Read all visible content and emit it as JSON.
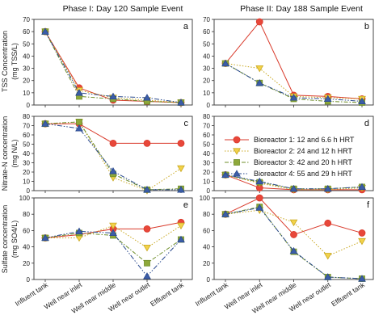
{
  "phase_titles": [
    "Phase I: Day 120 Sample Event",
    "Phase II: Day 188 Sample Event"
  ],
  "row_labels": [
    {
      "line1": "TSS Concentration",
      "line2": "(mg TSS/L)"
    },
    {
      "line1": "Nitrate-N concentration",
      "line2": "(mg N/L)"
    },
    {
      "line1": "Sulfate concentration",
      "line2": "(mg SO4/L)"
    }
  ],
  "categories": [
    "Influent tank",
    "Well near inlet",
    "Well near middle",
    "Well near outlet",
    "Effluent tank"
  ],
  "legend": [
    "Bioreactor 1: 12 and 6.6 h HRT",
    "Bioreactor 2: 24 and 12 h HRT",
    "Bioreactor 3: 42 and 20 h HRT",
    "Bioreactor 4: 55 and 29 h HRT"
  ],
  "colors": [
    "#d93a2b",
    "#c9a820",
    "#6f8e2a",
    "#2a4a8e"
  ],
  "fills": [
    "#e8473a",
    "#f2d24a",
    "#8ea83a",
    "#3c5da8"
  ],
  "chart_data": [
    {
      "type": "line",
      "panel": "a",
      "ylim": [
        0,
        70
      ],
      "yticks": [
        0,
        10,
        20,
        30,
        40,
        50,
        60,
        70
      ],
      "series": [
        {
          "name": "Bioreactor 1: 12 and 6.6 h HRT",
          "values": [
            60,
            14,
            4,
            3,
            2
          ]
        },
        {
          "name": "Bioreactor 2: 24 and 12 h HRT",
          "values": [
            60,
            12,
            6,
            4,
            2
          ]
        },
        {
          "name": "Bioreactor 3: 42 and 20 h HRT",
          "values": [
            60,
            7,
            5,
            3,
            2
          ]
        },
        {
          "name": "Bioreactor 4: 55 and 29 h HRT",
          "values": [
            60,
            10,
            7,
            6,
            2
          ]
        }
      ]
    },
    {
      "type": "line",
      "panel": "b",
      "ylim": [
        0,
        70
      ],
      "yticks": [
        0,
        10,
        20,
        30,
        40,
        50,
        60,
        70
      ],
      "series": [
        {
          "name": "Bioreactor 1: 12 and 6.6 h HRT",
          "values": [
            34,
            68,
            8,
            7,
            5
          ]
        },
        {
          "name": "Bioreactor 2: 24 and 12 h HRT",
          "values": [
            34,
            30,
            7,
            6,
            5
          ]
        },
        {
          "name": "Bioreactor 3: 42 and 20 h HRT",
          "values": [
            34,
            18,
            5,
            3,
            2
          ]
        },
        {
          "name": "Bioreactor 4: 55 and 29 h HRT",
          "values": [
            34,
            18,
            6,
            5,
            3
          ]
        }
      ]
    },
    {
      "type": "line",
      "panel": "c",
      "ylim": [
        0,
        80
      ],
      "yticks": [
        0,
        10,
        20,
        30,
        40,
        50,
        60,
        70,
        80
      ],
      "series": [
        {
          "name": "Bioreactor 1: 12 and 6.6 h HRT",
          "values": [
            72,
            72,
            51,
            51,
            51
          ]
        },
        {
          "name": "Bioreactor 2: 24 and 12 h HRT",
          "values": [
            72,
            74,
            14,
            0,
            24
          ]
        },
        {
          "name": "Bioreactor 3: 42 and 20 h HRT",
          "values": [
            72,
            74,
            18,
            1,
            2
          ]
        },
        {
          "name": "Bioreactor 4: 55 and 29 h HRT",
          "values": [
            72,
            67,
            21,
            1,
            1
          ]
        }
      ]
    },
    {
      "type": "line",
      "panel": "d",
      "ylim": [
        0,
        80
      ],
      "yticks": [
        0,
        10,
        20,
        30,
        40,
        50,
        60,
        70,
        80
      ],
      "series": [
        {
          "name": "Bioreactor 1: 12 and 6.6 h HRT",
          "values": [
            17,
            3,
            1,
            1,
            1
          ]
        },
        {
          "name": "Bioreactor 2: 24 and 12 h HRT",
          "values": [
            17,
            8,
            1,
            1,
            3
          ]
        },
        {
          "name": "Bioreactor 3: 42 and 20 h HRT",
          "values": [
            17,
            9,
            2,
            2,
            4
          ]
        },
        {
          "name": "Bioreactor 4: 55 and 29 h HRT",
          "values": [
            17,
            10,
            2,
            2,
            4
          ]
        }
      ]
    },
    {
      "type": "line",
      "panel": "e",
      "ylim": [
        0,
        100
      ],
      "yticks": [
        0,
        20,
        40,
        60,
        80,
        100
      ],
      "series": [
        {
          "name": "Bioreactor 1: 12 and 6.6 h HRT",
          "values": [
            51,
            55,
            62,
            62,
            70
          ]
        },
        {
          "name": "Bioreactor 2: 24 and 12 h HRT",
          "values": [
            51,
            51,
            66,
            39,
            66
          ]
        },
        {
          "name": "Bioreactor 3: 42 and 20 h HRT",
          "values": [
            51,
            57,
            54,
            20,
            49
          ]
        },
        {
          "name": "Bioreactor 4: 55 and 29 h HRT",
          "values": [
            51,
            59,
            57,
            4,
            49
          ]
        }
      ]
    },
    {
      "type": "line",
      "panel": "f",
      "ylim": [
        0,
        100
      ],
      "yticks": [
        0,
        20,
        40,
        60,
        80,
        100
      ],
      "series": [
        {
          "name": "Bioreactor 1: 12 and 6.6 h HRT",
          "values": [
            80,
            100,
            55,
            69,
            57
          ]
        },
        {
          "name": "Bioreactor 2: 24 and 12 h HRT",
          "values": [
            80,
            85,
            70,
            29,
            47
          ]
        },
        {
          "name": "Bioreactor 3: 42 and 20 h HRT",
          "values": [
            80,
            89,
            34,
            3,
            1
          ]
        },
        {
          "name": "Bioreactor 4: 55 and 29 h HRT",
          "values": [
            80,
            88,
            35,
            3,
            1
          ]
        }
      ]
    }
  ]
}
